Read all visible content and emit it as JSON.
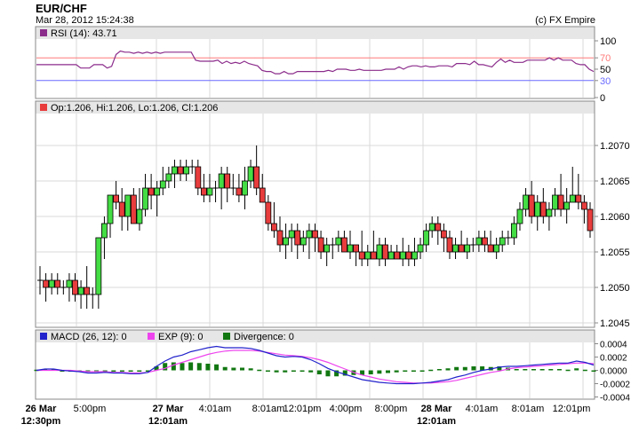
{
  "header": {
    "title": "EUR/CHF",
    "datetime": "Mar 28, 2012 15:24:38",
    "copyright": "(c) FX Empire"
  },
  "colors": {
    "panel_header_bg": "#e6e6e6",
    "grid": "#d8d8d8",
    "rsi_line": "#8b2c8b",
    "rsi_70": "#ff7a7a",
    "rsi_30": "#6a6aff",
    "candle_up": "#44dd44",
    "candle_down": "#e83c3c",
    "macd_line": "#2222cc",
    "exp_line": "#ee44ee",
    "divergence": "#117711"
  },
  "chart_data": [
    {
      "type": "line",
      "panel": "rsi",
      "legend": "RSI (14): 43.71",
      "ylim": [
        0,
        100
      ],
      "y_ticks": [
        "100",
        "70",
        "50",
        "30",
        "0"
      ],
      "levels": [
        70,
        30
      ],
      "values": [
        58,
        58,
        58,
        58,
        58,
        58,
        58,
        58,
        58,
        58,
        52,
        52,
        52,
        58,
        58,
        58,
        52,
        55,
        76,
        82,
        80,
        80,
        78,
        80,
        78,
        80,
        78,
        80,
        78,
        80,
        80,
        80,
        80,
        80,
        80,
        80,
        66,
        64,
        64,
        64,
        64,
        66,
        60,
        64,
        60,
        62,
        60,
        64,
        60,
        58,
        56,
        48,
        46,
        46,
        42,
        42,
        46,
        42,
        42,
        46,
        46,
        46,
        46,
        46,
        46,
        46,
        48,
        46,
        50,
        50,
        50,
        48,
        48,
        50,
        48,
        48,
        48,
        48,
        48,
        50,
        50,
        50,
        54,
        50,
        54,
        56,
        56,
        54,
        56,
        54,
        54,
        56,
        56,
        56,
        54,
        60,
        60,
        60,
        58,
        64,
        58,
        58,
        56,
        54,
        62,
        68,
        62,
        66,
        62,
        62,
        62,
        66,
        66,
        66,
        66,
        66,
        70,
        66,
        70,
        66,
        66,
        66,
        60,
        58,
        58,
        50,
        46
      ]
    },
    {
      "type": "candlestick",
      "panel": "price",
      "legend": "Op:1.206, Hi:1.206, Lo:1.206, Cl:1.206",
      "ylim": [
        1.20445,
        1.20745
      ],
      "y_ticks": [
        "1.2070",
        "1.2065",
        "1.2060",
        "1.2055",
        "1.2050",
        "1.2045"
      ],
      "x_ticks": [
        {
          "top": "26 Mar",
          "bottom": "12:30pm"
        },
        {
          "top": "5:00pm",
          "bottom": ""
        },
        {
          "top": "27 Mar",
          "bottom": "12:01am"
        },
        {
          "top": "4:01am",
          "bottom": ""
        },
        {
          "top": "8:01am",
          "bottom": ""
        },
        {
          "top": "12:01pm",
          "bottom": ""
        },
        {
          "top": "4:00pm",
          "bottom": ""
        },
        {
          "top": "8:00pm",
          "bottom": ""
        },
        {
          "top": "28 Mar",
          "bottom": "12:01am"
        },
        {
          "top": "4:01am",
          "bottom": ""
        },
        {
          "top": "8:01am",
          "bottom": ""
        },
        {
          "top": "12:01pm",
          "bottom": ""
        }
      ],
      "ohlc": [
        [
          1.2051,
          1.2053,
          1.2049,
          1.2051
        ],
        [
          1.2051,
          1.2052,
          1.2048,
          1.205
        ],
        [
          1.205,
          1.2052,
          1.2049,
          1.2051
        ],
        [
          1.2051,
          1.2052,
          1.2049,
          1.205
        ],
        [
          1.205,
          1.2051,
          1.2049,
          1.205
        ],
        [
          1.205,
          1.2052,
          1.2048,
          1.2051
        ],
        [
          1.2051,
          1.2052,
          1.2048,
          1.2049
        ],
        [
          1.2049,
          1.2051,
          1.2047,
          1.205
        ],
        [
          1.205,
          1.2053,
          1.2047,
          1.2049
        ],
        [
          1.2049,
          1.205,
          1.2047,
          1.2049
        ],
        [
          1.2049,
          1.2057,
          1.2047,
          1.2057
        ],
        [
          1.2057,
          1.206,
          1.2054,
          1.2059
        ],
        [
          1.2059,
          1.2063,
          1.2057,
          1.2063
        ],
        [
          1.2063,
          1.2065,
          1.2061,
          1.2062
        ],
        [
          1.2062,
          1.2064,
          1.2058,
          1.206
        ],
        [
          1.206,
          1.2063,
          1.2058,
          1.2063
        ],
        [
          1.2063,
          1.2064,
          1.2059,
          1.2059
        ],
        [
          1.2059,
          1.2064,
          1.2058,
          1.2061
        ],
        [
          1.2061,
          1.2066,
          1.206,
          1.2064
        ],
        [
          1.2064,
          1.2066,
          1.2061,
          1.2063
        ],
        [
          1.2063,
          1.2065,
          1.206,
          1.2064
        ],
        [
          1.2064,
          1.2067,
          1.2063,
          1.2065
        ],
        [
          1.2065,
          1.2067,
          1.2064,
          1.2066
        ],
        [
          1.2066,
          1.2068,
          1.2064,
          1.2067
        ],
        [
          1.2067,
          1.2068,
          1.2065,
          1.2066
        ],
        [
          1.2066,
          1.2068,
          1.2065,
          1.2067
        ],
        [
          1.2067,
          1.2068,
          1.2066,
          1.2067
        ],
        [
          1.2067,
          1.2068,
          1.2063,
          1.2064
        ],
        [
          1.2064,
          1.2066,
          1.2062,
          1.2063
        ],
        [
          1.2063,
          1.2066,
          1.2062,
          1.2064
        ],
        [
          1.2064,
          1.2065,
          1.2062,
          1.2064
        ],
        [
          1.2064,
          1.2067,
          1.2061,
          1.2066
        ],
        [
          1.2066,
          1.2067,
          1.2062,
          1.2064
        ],
        [
          1.2064,
          1.2066,
          1.2063,
          1.2064
        ],
        [
          1.2064,
          1.2066,
          1.2062,
          1.2063
        ],
        [
          1.2063,
          1.2067,
          1.2061,
          1.2065
        ],
        [
          1.2065,
          1.2068,
          1.2064,
          1.2067
        ],
        [
          1.2067,
          1.207,
          1.2063,
          1.2064
        ],
        [
          1.2064,
          1.2066,
          1.2062,
          1.2062
        ],
        [
          1.2062,
          1.2063,
          1.2058,
          1.2059
        ],
        [
          1.2059,
          1.2062,
          1.2057,
          1.2058
        ],
        [
          1.2058,
          1.206,
          1.2055,
          1.2056
        ],
        [
          1.2056,
          1.2059,
          1.2054,
          1.2057
        ],
        [
          1.2057,
          1.2059,
          1.2055,
          1.2058
        ],
        [
          1.2058,
          1.2059,
          1.2054,
          1.2056
        ],
        [
          1.2056,
          1.2058,
          1.2055,
          1.2057
        ],
        [
          1.2057,
          1.2059,
          1.2054,
          1.2058
        ],
        [
          1.2058,
          1.2059,
          1.2055,
          1.2057
        ],
        [
          1.2057,
          1.2058,
          1.2054,
          1.2055
        ],
        [
          1.2055,
          1.2057,
          1.2053,
          1.2056
        ],
        [
          1.2056,
          1.2057,
          1.2054,
          1.2056
        ],
        [
          1.2056,
          1.2058,
          1.2055,
          1.2057
        ],
        [
          1.2057,
          1.2058,
          1.2055,
          1.2055
        ],
        [
          1.2055,
          1.2058,
          1.2054,
          1.2056
        ],
        [
          1.2056,
          1.2056,
          1.2053,
          1.2055
        ],
        [
          1.2055,
          1.2058,
          1.2053,
          1.2054
        ],
        [
          1.2054,
          1.2056,
          1.2053,
          1.2055
        ],
        [
          1.2055,
          1.2058,
          1.2054,
          1.2054
        ],
        [
          1.2054,
          1.2057,
          1.2053,
          1.2056
        ],
        [
          1.2056,
          1.2057,
          1.2053,
          1.2054
        ],
        [
          1.2054,
          1.2056,
          1.2054,
          1.2055
        ],
        [
          1.2055,
          1.2056,
          1.2054,
          1.2054
        ],
        [
          1.2054,
          1.2057,
          1.2053,
          1.2055
        ],
        [
          1.2055,
          1.2056,
          1.2053,
          1.2054
        ],
        [
          1.2054,
          1.2057,
          1.2053,
          1.2055
        ],
        [
          1.2055,
          1.2057,
          1.2054,
          1.2056
        ],
        [
          1.2056,
          1.2059,
          1.2055,
          1.2058
        ],
        [
          1.2058,
          1.206,
          1.2057,
          1.2059
        ],
        [
          1.2059,
          1.206,
          1.2056,
          1.2058
        ],
        [
          1.2058,
          1.2059,
          1.2055,
          1.2057
        ],
        [
          1.2057,
          1.2058,
          1.2054,
          1.2055
        ],
        [
          1.2055,
          1.2057,
          1.2054,
          1.2056
        ],
        [
          1.2056,
          1.2058,
          1.2055,
          1.2055
        ],
        [
          1.2055,
          1.2057,
          1.2054,
          1.2056
        ],
        [
          1.2056,
          1.2057,
          1.2055,
          1.2056
        ],
        [
          1.2056,
          1.2058,
          1.2055,
          1.2057
        ],
        [
          1.2057,
          1.2058,
          1.2055,
          1.2056
        ],
        [
          1.2056,
          1.2058,
          1.2055,
          1.2055
        ],
        [
          1.2055,
          1.2057,
          1.2054,
          1.2056
        ],
        [
          1.2056,
          1.2058,
          1.2055,
          1.2057
        ],
        [
          1.2057,
          1.2058,
          1.2056,
          1.2057
        ],
        [
          1.2057,
          1.206,
          1.2056,
          1.2059
        ],
        [
          1.2059,
          1.2062,
          1.2058,
          1.2061
        ],
        [
          1.2061,
          1.2064,
          1.206,
          1.2063
        ],
        [
          1.2063,
          1.2065,
          1.2059,
          1.206
        ],
        [
          1.206,
          1.2063,
          1.2058,
          1.2062
        ],
        [
          1.2062,
          1.2064,
          1.2059,
          1.206
        ],
        [
          1.206,
          1.2062,
          1.2058,
          1.2061
        ],
        [
          1.2061,
          1.2064,
          1.206,
          1.2063
        ],
        [
          1.2063,
          1.2066,
          1.206,
          1.2061
        ],
        [
          1.2061,
          1.2064,
          1.2059,
          1.2062
        ],
        [
          1.2062,
          1.2067,
          1.2062,
          1.2063
        ],
        [
          1.2063,
          1.2066,
          1.2061,
          1.2062
        ],
        [
          1.2062,
          1.2063,
          1.2059,
          1.2061
        ],
        [
          1.2061,
          1.2062,
          1.2057,
          1.2058
        ]
      ]
    },
    {
      "type": "line",
      "panel": "macd",
      "y_ticks": [
        "0.0004",
        "0.0002",
        "0.0000",
        "-0.0002",
        "-0.0004"
      ],
      "ylim": [
        -0.00042,
        0.00042
      ],
      "legend": {
        "macd": "MACD (26, 12): 0",
        "exp": "EXP (9): 0",
        "divergence": "Divergence: 0"
      },
      "series": [
        {
          "name": "MACD (26, 12): 0",
          "values": [
            0.0,
            2e-05,
            2e-05,
            0.0,
            -1e-05,
            -2e-05,
            -4e-05,
            -4e-05,
            -3e-05,
            -4e-05,
            -4e-05,
            -5e-05,
            -5e-05,
            -3e-05,
            6e-05,
            0.00014,
            0.0002,
            0.00023,
            0.00028,
            0.00031,
            0.00034,
            0.00036,
            0.00034,
            0.00034,
            0.00034,
            0.00033,
            0.0003,
            0.00026,
            0.00022,
            0.0002,
            0.00021,
            0.0002,
            0.00016,
            0.0001,
            3e-05,
            -2e-05,
            -6e-05,
            -0.0001,
            -0.00014,
            -0.00016,
            -0.00018,
            -0.00019,
            -0.0002,
            -0.0002,
            -0.0002,
            -0.00019,
            -0.00018,
            -0.00016,
            -0.00014,
            -0.0001,
            -7e-05,
            -3e-05,
            0.0,
            2e-05,
            5e-05,
            6e-05,
            6e-05,
            7e-05,
            8e-05,
            9e-05,
            0.0001,
            0.00011,
            0.00011,
            0.00014,
            0.00012,
            8e-05
          ]
        },
        {
          "name": "EXP (9): 0",
          "values": [
            0.0,
            0.0,
            0.0,
            0.0,
            0.0,
            -1e-05,
            -2e-05,
            -2e-05,
            -2e-05,
            -3e-05,
            -3e-05,
            -4e-05,
            -4e-05,
            -3e-05,
            0.0,
            3e-05,
            8e-05,
            0.00012,
            0.00016,
            0.0002,
            0.00024,
            0.00027,
            0.00029,
            0.0003,
            0.0003,
            0.0003,
            0.00029,
            0.00027,
            0.00025,
            0.00023,
            0.00022,
            0.00021,
            0.00019,
            0.00016,
            0.00012,
            7e-05,
            2e-05,
            -3e-05,
            -7e-05,
            -0.0001,
            -0.00013,
            -0.00015,
            -0.00017,
            -0.00018,
            -0.00019,
            -0.00019,
            -0.00019,
            -0.00018,
            -0.00017,
            -0.00015,
            -0.00012,
            -9e-05,
            -6e-05,
            -3e-05,
            -1e-05,
            2e-05,
            4e-05,
            5e-05,
            6e-05,
            7e-05,
            8e-05,
            9e-05,
            0.0001,
            0.00011,
            0.00011,
            0.0001
          ]
        },
        {
          "name": "Divergence: 0",
          "type": "bar",
          "values": [
            1e-05,
            2e-05,
            2e-05,
            0.0,
            -1e-05,
            -1e-05,
            -2e-05,
            -2e-05,
            -1e-05,
            -1e-05,
            -1e-05,
            -1e-05,
            -1e-05,
            0.0,
            6e-05,
            0.00011,
            0.00012,
            0.00011,
            0.00012,
            0.00011,
            0.0001,
            9e-05,
            5e-05,
            4e-05,
            4e-05,
            3e-05,
            1e-05,
            -1e-05,
            -3e-05,
            -3e-05,
            -1e-05,
            -1e-05,
            -3e-05,
            -6e-05,
            -9e-05,
            -9e-05,
            -8e-05,
            -7e-05,
            -7e-05,
            -6e-05,
            -5e-05,
            -4e-05,
            -3e-05,
            -2e-05,
            -1e-05,
            0.0,
            1e-05,
            2e-05,
            3e-05,
            5e-05,
            5e-05,
            6e-05,
            6e-05,
            5e-05,
            6e-05,
            4e-05,
            2e-05,
            2e-05,
            2e-05,
            2e-05,
            2e-05,
            2e-05,
            1e-05,
            3e-05,
            1e-05,
            -2e-05
          ]
        }
      ]
    }
  ]
}
